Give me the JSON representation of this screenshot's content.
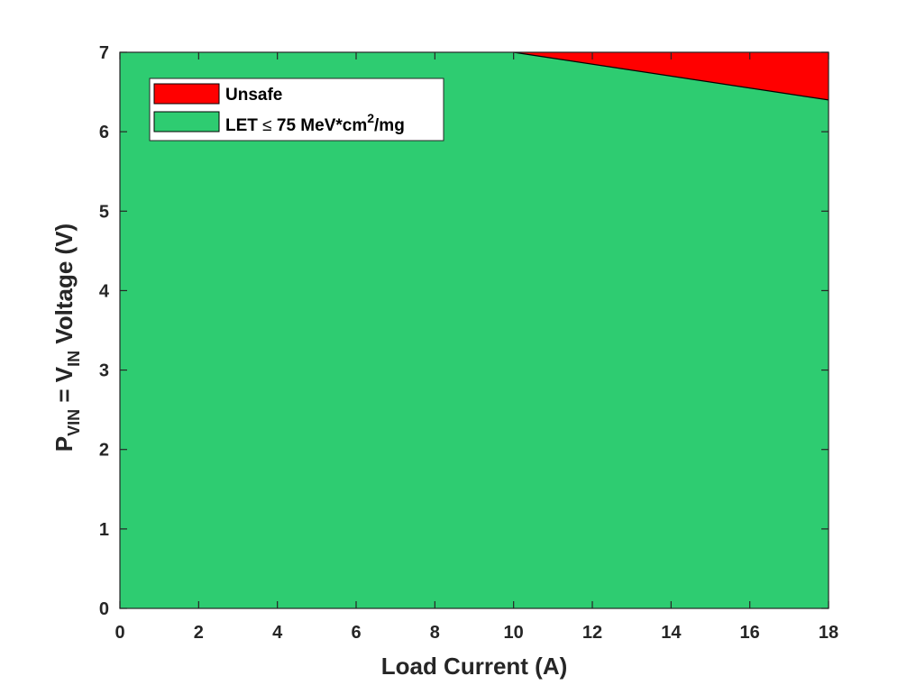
{
  "chart_data": {
    "type": "area",
    "xlabel": "Load Current (A)",
    "ylabel": {
      "p": "P",
      "p_sub": "VIN",
      "eq": " = V",
      "v_sub": "IN",
      "rest": " Voltage (V)"
    },
    "xlim": [
      0,
      18
    ],
    "ylim": [
      0,
      7
    ],
    "xticks": [
      "0",
      "2",
      "4",
      "6",
      "8",
      "10",
      "12",
      "14",
      "16",
      "18"
    ],
    "yticks": [
      "0",
      "1",
      "2",
      "3",
      "4",
      "5",
      "6",
      "7"
    ],
    "grid": false,
    "legend_position": "top-left",
    "series": [
      {
        "name": "Unsafe",
        "color": "#ff0000",
        "region": "above boundary",
        "boundary": {
          "x": [
            10,
            18
          ],
          "y": [
            7,
            6.4
          ]
        }
      },
      {
        "name": "LET ≤ 75 MeV*cm²/mg",
        "legend": {
          "prefix": "LET ",
          "le": "≤",
          "main": " 75 MeV*cm",
          "sup": "2",
          "suffix": "/mg"
        },
        "color": "#2ecc71",
        "region": "below boundary"
      }
    ]
  }
}
